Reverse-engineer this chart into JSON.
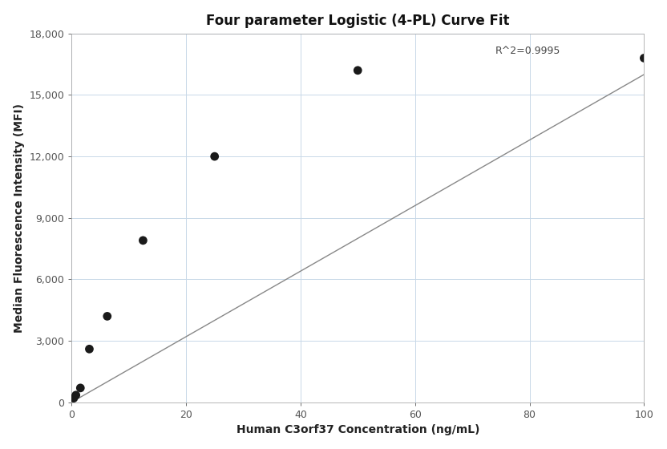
{
  "title": "Four parameter Logistic (4-PL) Curve Fit",
  "xlabel": "Human C3orf37 Concentration (ng/mL)",
  "ylabel": "Median Fluorescence Intensity (MFI)",
  "scatter_x": [
    0.39,
    0.78,
    1.563,
    3.125,
    6.25,
    12.5,
    25.0,
    50.0,
    100.0
  ],
  "scatter_y": [
    200,
    350,
    700,
    2600,
    4200,
    7900,
    12000,
    16200,
    16800
  ],
  "r_squared": "R^2=0.9995",
  "xlim": [
    0,
    100
  ],
  "ylim": [
    0,
    18000
  ],
  "xticks": [
    0,
    20,
    40,
    60,
    80,
    100
  ],
  "yticks": [
    0,
    3000,
    6000,
    9000,
    12000,
    15000,
    18000
  ],
  "ytick_labels": [
    "0",
    "3,000",
    "6,000",
    "9,000",
    "12,000",
    "15,000",
    "18,000"
  ],
  "bg_color": "#ffffff",
  "grid_color": "#c8d8e8",
  "scatter_color": "#1a1a1a",
  "line_color": "#888888",
  "title_fontsize": 12,
  "label_fontsize": 10,
  "tick_fontsize": 9,
  "annotation_fontsize": 9,
  "marker_size": 60
}
